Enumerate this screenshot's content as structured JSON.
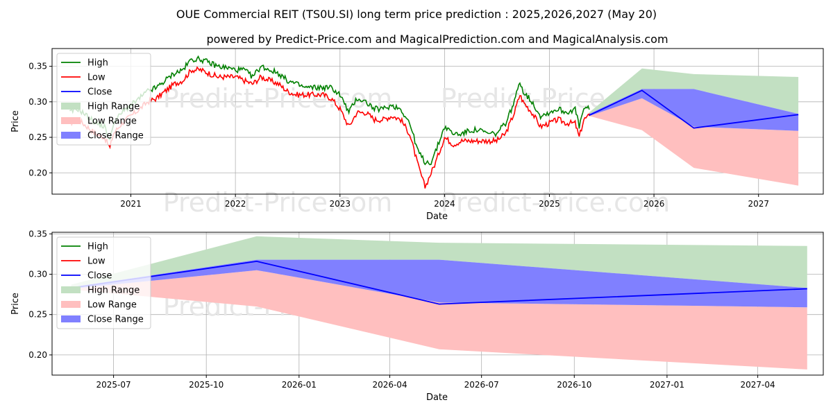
{
  "header": {
    "title": "OUE Commercial REIT (TS0U.SI) long term price prediction : 2025,2026,2027 (May 20)",
    "subtitle": "powered by Predict-Price.com and MagicalPrediction.com and MagicalAnalysis.com"
  },
  "watermark": "Predict-Price.com",
  "colors": {
    "high": "#008000",
    "low": "#ff0000",
    "close": "#0000ff",
    "high_range": "#c2e0c2",
    "low_range": "#ffbfbf",
    "close_range": "#8080ff"
  },
  "legend": {
    "placement": "top-left",
    "items": [
      {
        "label": "High",
        "kind": "line",
        "color": "#008000"
      },
      {
        "label": "Low",
        "kind": "line",
        "color": "#ff0000"
      },
      {
        "label": "Close",
        "kind": "line",
        "color": "#0000ff"
      },
      {
        "label": "High Range",
        "kind": "patch",
        "color": "#c2e0c2"
      },
      {
        "label": "Low Range",
        "kind": "patch",
        "color": "#ffbfbf"
      },
      {
        "label": "Close Range",
        "kind": "patch",
        "color": "#8080ff"
      }
    ]
  },
  "chart_data": [
    {
      "type": "line",
      "xlabel": "Date",
      "ylabel": "Price",
      "grid": true,
      "xlim": [
        "2020-04-01",
        "2027-08-15"
      ],
      "ylim": [
        0.17,
        0.375
      ],
      "xticks": [
        {
          "date": "2021-01-01",
          "label": "2021"
        },
        {
          "date": "2022-01-01",
          "label": "2022"
        },
        {
          "date": "2023-01-01",
          "label": "2023"
        },
        {
          "date": "2024-01-01",
          "label": "2024"
        },
        {
          "date": "2025-01-01",
          "label": "2025"
        },
        {
          "date": "2026-01-01",
          "label": "2026"
        },
        {
          "date": "2027-01-01",
          "label": "2027"
        }
      ],
      "yticks": [
        0.2,
        0.25,
        0.3,
        0.35
      ],
      "ytick_labels": [
        "0.20",
        "0.25",
        "0.30",
        "0.35"
      ],
      "history": {
        "dates": [
          "2020-06-01",
          "2020-07-01",
          "2020-08-01",
          "2020-09-01",
          "2020-10-01",
          "2020-10-20",
          "2020-11-01",
          "2020-12-01",
          "2021-01-01",
          "2021-02-01",
          "2021-03-01",
          "2021-04-01",
          "2021-05-01",
          "2021-06-01",
          "2021-07-01",
          "2021-08-01",
          "2021-09-01",
          "2021-10-01",
          "2021-11-01",
          "2021-12-01",
          "2022-01-01",
          "2022-02-01",
          "2022-03-01",
          "2022-04-01",
          "2022-05-01",
          "2022-06-01",
          "2022-07-01",
          "2022-08-01",
          "2022-09-01",
          "2022-10-01",
          "2022-11-01",
          "2022-12-01",
          "2023-01-01",
          "2023-02-01",
          "2023-03-01",
          "2023-04-01",
          "2023-05-01",
          "2023-06-01",
          "2023-07-01",
          "2023-08-01",
          "2023-09-01",
          "2023-10-01",
          "2023-10-25",
          "2023-11-15",
          "2023-12-01",
          "2024-01-01",
          "2024-02-01",
          "2024-03-01",
          "2024-04-01",
          "2024-05-01",
          "2024-06-01",
          "2024-07-01",
          "2024-08-01",
          "2024-09-01",
          "2024-09-20",
          "2024-10-01",
          "2024-11-01",
          "2024-12-01",
          "2025-01-01",
          "2025-02-01",
          "2025-03-01",
          "2025-04-01",
          "2025-04-15",
          "2025-05-01",
          "2025-05-20"
        ],
        "high": [
          0.285,
          0.29,
          0.28,
          0.27,
          0.265,
          0.245,
          0.27,
          0.285,
          0.295,
          0.305,
          0.315,
          0.32,
          0.33,
          0.34,
          0.345,
          0.36,
          0.36,
          0.355,
          0.35,
          0.348,
          0.345,
          0.345,
          0.335,
          0.35,
          0.345,
          0.34,
          0.33,
          0.325,
          0.32,
          0.32,
          0.32,
          0.32,
          0.31,
          0.285,
          0.305,
          0.3,
          0.29,
          0.29,
          0.295,
          0.29,
          0.27,
          0.23,
          0.215,
          0.215,
          0.23,
          0.265,
          0.255,
          0.255,
          0.26,
          0.26,
          0.255,
          0.255,
          0.27,
          0.3,
          0.33,
          0.315,
          0.3,
          0.28,
          0.285,
          0.29,
          0.285,
          0.29,
          0.265,
          0.29,
          0.29
        ],
        "low": [
          0.27,
          0.275,
          0.265,
          0.255,
          0.25,
          0.235,
          0.255,
          0.27,
          0.28,
          0.29,
          0.3,
          0.305,
          0.315,
          0.325,
          0.33,
          0.345,
          0.345,
          0.34,
          0.335,
          0.335,
          0.335,
          0.33,
          0.325,
          0.335,
          0.33,
          0.325,
          0.315,
          0.31,
          0.31,
          0.31,
          0.31,
          0.305,
          0.29,
          0.265,
          0.285,
          0.285,
          0.275,
          0.275,
          0.28,
          0.275,
          0.255,
          0.21,
          0.18,
          0.2,
          0.215,
          0.25,
          0.24,
          0.245,
          0.245,
          0.245,
          0.245,
          0.245,
          0.255,
          0.285,
          0.31,
          0.3,
          0.285,
          0.265,
          0.27,
          0.275,
          0.27,
          0.27,
          0.25,
          0.275,
          0.28
        ]
      },
      "forecast": {
        "dates": [
          "2025-05-20",
          "2025-11-20",
          "2026-05-20",
          "2027-05-20"
        ],
        "close": [
          0.281,
          0.316,
          0.263,
          0.282
        ],
        "high_range_upper": [
          0.285,
          0.347,
          0.339,
          0.335
        ],
        "low_range_lower": [
          0.28,
          0.26,
          0.207,
          0.182
        ],
        "close_range_upper": [
          0.283,
          0.318,
          0.318,
          0.283
        ],
        "close_range_lower": [
          0.28,
          0.305,
          0.265,
          0.259
        ]
      }
    },
    {
      "type": "line",
      "xlabel": "Date",
      "ylabel": "Price",
      "grid": true,
      "xlim": [
        "2025-05-01",
        "2027-06-05"
      ],
      "ylim": [
        0.175,
        0.352
      ],
      "xticks": [
        {
          "date": "2025-07-01",
          "label": "2025-07"
        },
        {
          "date": "2025-10-01",
          "label": "2025-10"
        },
        {
          "date": "2026-01-01",
          "label": "2026-01"
        },
        {
          "date": "2026-04-01",
          "label": "2026-04"
        },
        {
          "date": "2026-07-01",
          "label": "2026-07"
        },
        {
          "date": "2026-10-01",
          "label": "2026-10"
        },
        {
          "date": "2027-01-01",
          "label": "2027-01"
        },
        {
          "date": "2027-04-01",
          "label": "2027-04"
        }
      ],
      "yticks": [
        0.2,
        0.25,
        0.3,
        0.35
      ],
      "ytick_labels": [
        "0.20",
        "0.25",
        "0.30",
        "0.35"
      ],
      "forecast": {
        "dates": [
          "2025-05-20",
          "2025-11-20",
          "2026-05-20",
          "2027-05-20"
        ],
        "close": [
          0.283,
          0.316,
          0.263,
          0.282
        ],
        "high_range_upper": [
          0.287,
          0.347,
          0.339,
          0.335
        ],
        "low_range_lower": [
          0.281,
          0.26,
          0.207,
          0.182
        ],
        "close_range_upper": [
          0.284,
          0.318,
          0.318,
          0.283
        ],
        "close_range_lower": [
          0.282,
          0.305,
          0.265,
          0.259
        ]
      }
    }
  ]
}
